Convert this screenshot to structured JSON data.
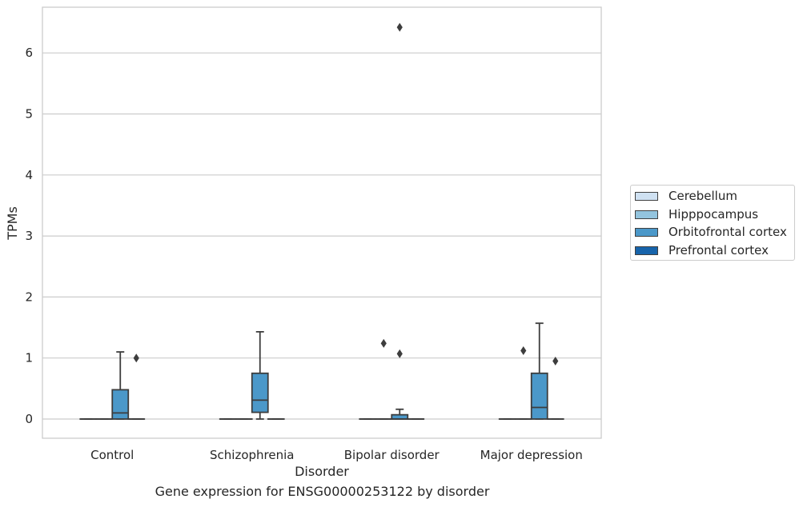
{
  "chart_data": {
    "type": "box",
    "title": "",
    "caption": "Gene expression for ENSG00000253122 by disorder",
    "xlabel": "Disorder",
    "ylabel": "TPMs",
    "categories": [
      "Control",
      "Schizophrenia",
      "Bipolar disorder",
      "Major depression"
    ],
    "ylim": [
      -0.32,
      6.75
    ],
    "yticks": [
      0,
      1,
      2,
      3,
      4,
      5,
      6
    ],
    "grid": true,
    "legend_position": "right",
    "series": [
      {
        "name": "Cerebellum",
        "color": "#cfe1f2",
        "boxes": [
          {
            "min": 0,
            "q1": 0,
            "median": 0,
            "q3": 0,
            "max": 0,
            "outliers": []
          },
          {
            "min": 0,
            "q1": 0,
            "median": 0,
            "q3": 0,
            "max": 0,
            "outliers": []
          },
          {
            "min": 0,
            "q1": 0,
            "median": 0,
            "q3": 0,
            "max": 0,
            "outliers": []
          },
          {
            "min": 0,
            "q1": 0,
            "median": 0,
            "q3": 0,
            "max": 0,
            "outliers": []
          }
        ]
      },
      {
        "name": "Hipppocampus",
        "color": "#93c4de",
        "boxes": [
          {
            "min": 0,
            "q1": 0,
            "median": 0,
            "q3": 0,
            "max": 0,
            "outliers": []
          },
          {
            "min": 0,
            "q1": 0,
            "median": 0,
            "q3": 0,
            "max": 0,
            "outliers": []
          },
          {
            "min": 0,
            "q1": 0,
            "median": 0,
            "q3": 0,
            "max": 0,
            "outliers": []
          },
          {
            "min": 0,
            "q1": 0,
            "median": 0,
            "q3": 0,
            "max": 0,
            "outliers": []
          }
        ]
      },
      {
        "name": "Orbitofrontal cortex",
        "color": "#4b98c9",
        "boxes": [
          {
            "min": 0,
            "q1": 0,
            "median": 0.1,
            "q3": 0.48,
            "max": 1.1,
            "outliers": []
          },
          {
            "min": 0,
            "q1": 0.11,
            "median": 0.31,
            "q3": 0.75,
            "max": 1.43,
            "outliers": []
          },
          {
            "min": 0,
            "q1": 0,
            "median": 0,
            "q3": 0.07,
            "max": 0.16,
            "outliers": [
              1.07,
              6.42
            ]
          },
          {
            "min": 0,
            "q1": 0,
            "median": 0.19,
            "q3": 0.75,
            "max": 1.57,
            "outliers": []
          }
        ]
      },
      {
        "name": "Prefrontal cortex",
        "color": "#1764ab",
        "boxes": [
          {
            "min": 0,
            "q1": 0,
            "median": 0,
            "q3": 0,
            "max": 0,
            "outliers": [
              1.0
            ]
          },
          {
            "min": 0,
            "q1": 0,
            "median": 0,
            "q3": 0,
            "max": 0,
            "outliers": []
          },
          {
            "min": 0,
            "q1": 0,
            "median": 0,
            "q3": 0,
            "max": 0,
            "outliers": []
          },
          {
            "min": 0,
            "q1": 0,
            "median": 0,
            "q3": 0,
            "max": 0,
            "outliers": [
              0.95
            ]
          }
        ]
      }
    ],
    "extra_outliers": [
      {
        "category": "Bipolar disorder",
        "series": "Hipppocampus",
        "value": 1.24
      },
      {
        "category": "Major depression",
        "series": "Hipppocampus",
        "value": 1.12
      }
    ],
    "colors": {
      "grid": "#cccccc",
      "frame": "#cccccc",
      "box_edge": "#3d3d3d",
      "text": "#262626"
    }
  }
}
